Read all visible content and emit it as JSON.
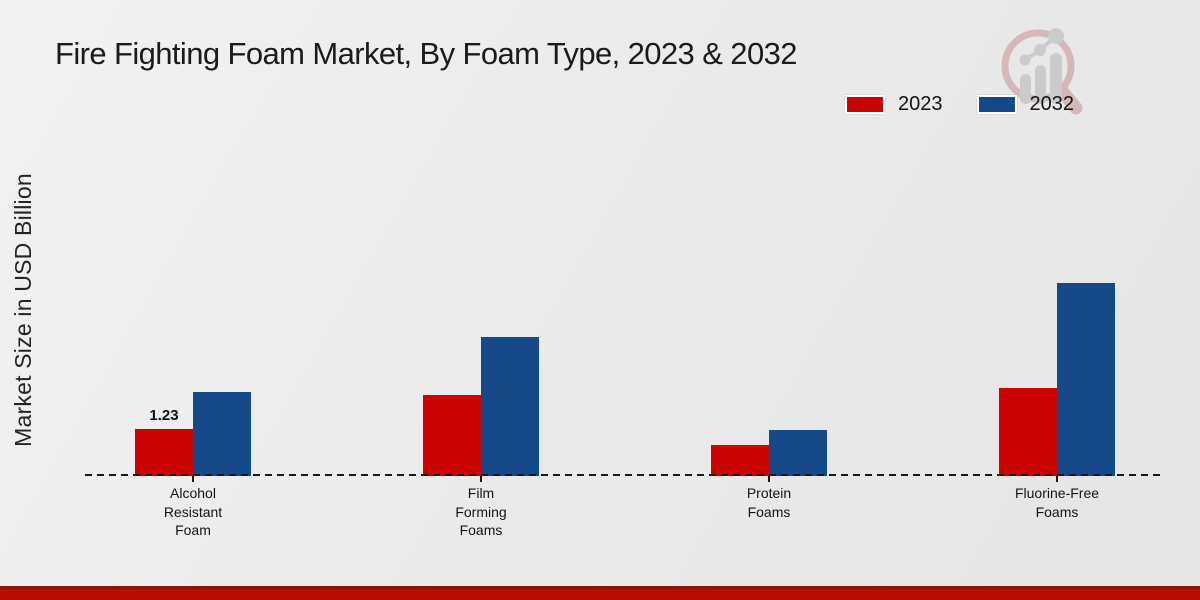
{
  "title": "Fire Fighting Foam Market, By Foam Type, 2023 & 2032",
  "ylabel": "Market Size in USD Billion",
  "colors": {
    "series_2023": "#cc0401",
    "series_2032": "#15498a",
    "footer_strip": "#b80d00",
    "axis": "#191919",
    "text": "#1b1b1b",
    "watermark_ring": "#b96a6a",
    "watermark_bars": "#9d9d9d"
  },
  "legend": {
    "items": [
      {
        "label": "2023",
        "color": "#cc0401"
      },
      {
        "label": "2032",
        "color": "#15498a"
      }
    ]
  },
  "chart_data": {
    "type": "bar",
    "title": "Fire Fighting Foam Market, By Foam Type, 2023 & 2032",
    "xlabel": "",
    "ylabel": "Market Size in USD Billion",
    "categories": [
      "Alcohol Resistant Foam",
      "Film Forming Foams",
      "Protein Foams",
      "Fluorine-Free Foams"
    ],
    "series": [
      {
        "name": "2023",
        "color": "#cc0401",
        "values": [
          1.23,
          2.12,
          0.82,
          2.3
        ]
      },
      {
        "name": "2032",
        "color": "#15498a",
        "values": [
          2.2,
          3.65,
          1.2,
          5.05
        ]
      }
    ],
    "annotations": [
      {
        "series": "2023",
        "category": "Alcohol Resistant Foam",
        "text": "1.23"
      }
    ],
    "ylim": [
      0,
      5.5
    ],
    "grid": false,
    "y_axis_ticks_visible": false,
    "legend_position": "top-right",
    "baseline_style": "dashed"
  }
}
